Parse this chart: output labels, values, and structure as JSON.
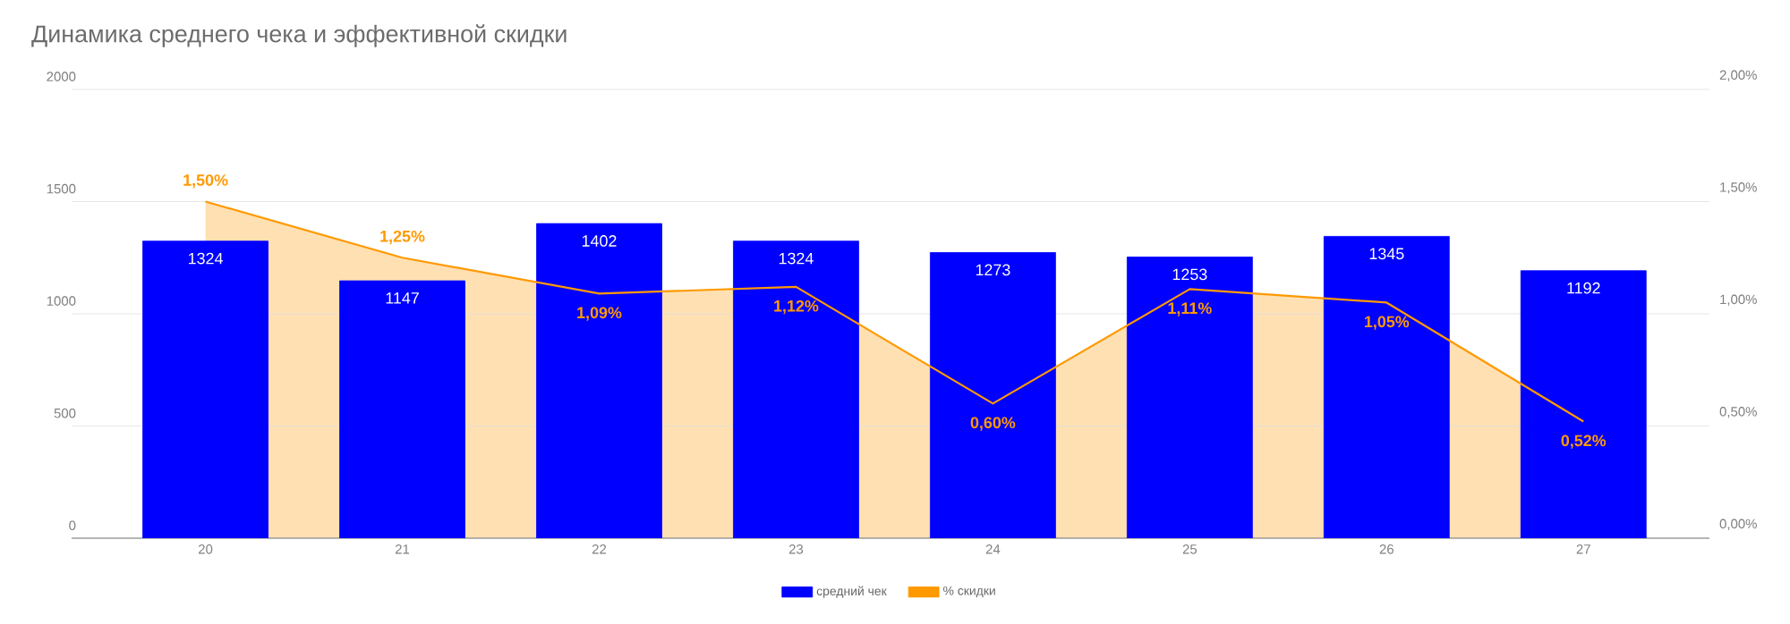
{
  "chart_data": {
    "type": "bar",
    "title": "Динамика среднего чека и эффективной скидки",
    "categories": [
      "20",
      "21",
      "22",
      "23",
      "24",
      "25",
      "26",
      "27"
    ],
    "series": [
      {
        "name": "средний чек",
        "color": "#0000ff",
        "values": [
          1324,
          1147,
          1402,
          1324,
          1273,
          1253,
          1345,
          1192
        ],
        "value_labels": [
          "1324",
          "1147",
          "1402",
          "1324",
          "1273",
          "1253",
          "1345",
          "1192"
        ]
      },
      {
        "name": "% скидки",
        "type": "area",
        "axis": "y2",
        "color": "#ff9900",
        "values": [
          1.5,
          1.25,
          1.09,
          1.12,
          0.6,
          1.11,
          1.05,
          0.52
        ],
        "value_labels": [
          "1,50%",
          "1,25%",
          "1,09%",
          "1,12%",
          "0,60%",
          "1,11%",
          "1,05%",
          "0,52%"
        ]
      }
    ],
    "ylim": [
      0,
      2000
    ],
    "yticks": [
      0,
      500,
      1000,
      1500,
      2000
    ],
    "y2lim": [
      0,
      2.0
    ],
    "y2ticks": [
      {
        "value": 0,
        "label": "0,00%"
      },
      {
        "value": 0.5,
        "label": "0,50%"
      },
      {
        "value": 1.0,
        "label": "1,00%"
      },
      {
        "value": 1.5,
        "label": "1,50%"
      },
      {
        "value": 2.0,
        "label": "2,00%"
      }
    ],
    "grid": "y",
    "legend": "bottom"
  }
}
